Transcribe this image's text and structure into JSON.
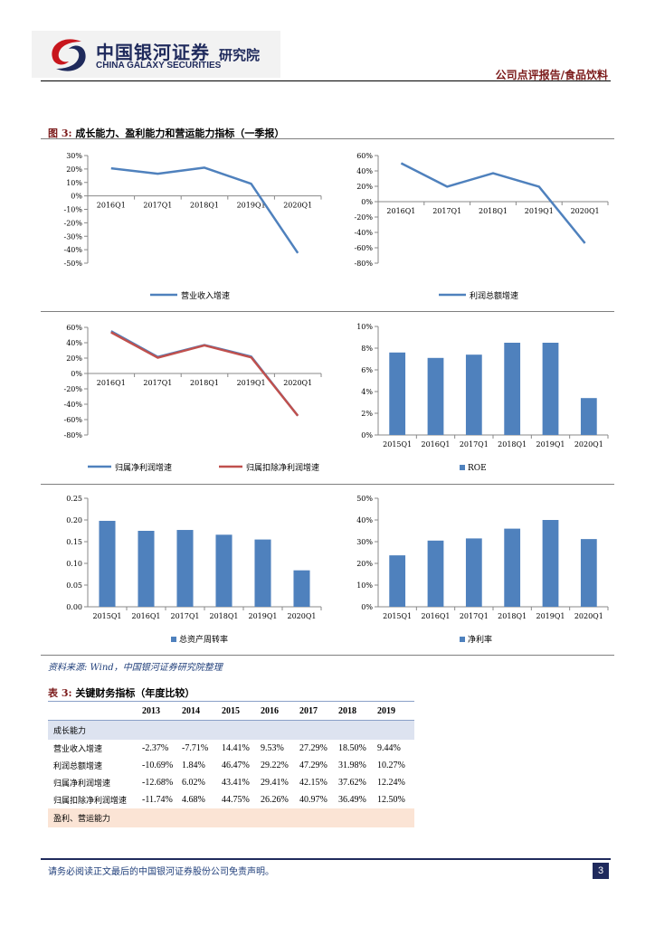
{
  "header": {
    "logo_cn": "中国银河证券",
    "logo_en": "CHINA GALAXY SECURITIES",
    "logo_inst": "研究院",
    "category": "公司点评报告/食品饮料"
  },
  "figure": {
    "label": "图 3:",
    "title": "成长能力、盈利能力和营运能力指标（一季报）",
    "source": "资料来源: Wind，中国银河证券研究院整理"
  },
  "colors": {
    "blue": "#4f81bd",
    "red": "#c0504d",
    "brand": "#1f2a5c"
  },
  "chart_data": [
    {
      "type": "line",
      "title": "",
      "categories": [
        "2016Q1",
        "2017Q1",
        "2018Q1",
        "2019Q1",
        "2020Q1"
      ],
      "series": [
        {
          "name": "营业收入增速",
          "values": [
            20.5,
            16.5,
            21.0,
            9.0,
            -42.5
          ]
        }
      ],
      "ylim": [
        -50,
        30
      ],
      "ticks": [
        "30%",
        "20%",
        "10%",
        "0%",
        "-10%",
        "-20%",
        "-30%",
        "-40%",
        "-50%"
      ]
    },
    {
      "type": "line",
      "title": "",
      "categories": [
        "2016Q1",
        "2017Q1",
        "2018Q1",
        "2019Q1",
        "2020Q1"
      ],
      "series": [
        {
          "name": "利润总额增速",
          "values": [
            50.0,
            19.5,
            37.0,
            19.5,
            -54.0
          ]
        }
      ],
      "ylim": [
        -80,
        60
      ],
      "ticks": [
        "60%",
        "40%",
        "20%",
        "0%",
        "-20%",
        "-40%",
        "-60%",
        "-80%"
      ]
    },
    {
      "type": "line",
      "title": "",
      "categories": [
        "2016Q1",
        "2017Q1",
        "2018Q1",
        "2019Q1",
        "2020Q1"
      ],
      "series": [
        {
          "name": "归属净利润增速",
          "values": [
            55.0,
            21.5,
            37.0,
            22.0,
            -55.0
          ]
        },
        {
          "name": "归属扣除净利润增速",
          "values": [
            53.5,
            20.5,
            36.5,
            21.0,
            -55.0
          ]
        }
      ],
      "ylim": [
        -80,
        60
      ],
      "ticks": [
        "60%",
        "40%",
        "20%",
        "0%",
        "-20%",
        "-40%",
        "-60%",
        "-80%"
      ]
    },
    {
      "type": "bar",
      "title": "",
      "categories": [
        "2015Q1",
        "2016Q1",
        "2017Q1",
        "2018Q1",
        "2019Q1",
        "2020Q1"
      ],
      "series": [
        {
          "name": "ROE",
          "values": [
            7.6,
            7.1,
            7.4,
            8.5,
            8.5,
            3.4
          ]
        }
      ],
      "ylim": [
        0,
        10
      ],
      "ticks": [
        "10%",
        "8%",
        "6%",
        "4%",
        "2%",
        "0%"
      ]
    },
    {
      "type": "bar",
      "title": "",
      "categories": [
        "2015Q1",
        "2016Q1",
        "2017Q1",
        "2018Q1",
        "2019Q1",
        "2020Q1"
      ],
      "series": [
        {
          "name": "总资产周转率",
          "values": [
            0.198,
            0.175,
            0.177,
            0.166,
            0.155,
            0.084
          ]
        }
      ],
      "ylim": [
        0,
        0.25
      ],
      "ticks": [
        "0.25",
        "0.20",
        "0.15",
        "0.10",
        "0.05",
        "0.00"
      ]
    },
    {
      "type": "bar",
      "title": "",
      "categories": [
        "2015Q1",
        "2016Q1",
        "2017Q1",
        "2018Q1",
        "2019Q1",
        "2020Q1"
      ],
      "series": [
        {
          "name": "净利率",
          "values": [
            23.7,
            30.5,
            31.5,
            36.0,
            40.0,
            31.2
          ]
        }
      ],
      "ylim": [
        0,
        50
      ],
      "ticks": [
        "50%",
        "40%",
        "30%",
        "20%",
        "10%",
        "0%"
      ]
    }
  ],
  "table": {
    "label": "表 3:",
    "title": "关键财务指标（年度比较）",
    "years": [
      "2013",
      "2014",
      "2015",
      "2016",
      "2017",
      "2018",
      "2019"
    ],
    "section1": "成长能力",
    "rows": [
      {
        "label": "营业收入增速",
        "values": [
          "-2.37%",
          "-7.71%",
          "14.41%",
          "9.53%",
          "27.29%",
          "18.50%",
          "9.44%"
        ]
      },
      {
        "label": "利润总额增速",
        "values": [
          "-10.69%",
          "1.84%",
          "46.47%",
          "29.22%",
          "47.29%",
          "31.98%",
          "10.27%"
        ]
      },
      {
        "label": "归属净利润增速",
        "values": [
          "-12.68%",
          "6.02%",
          "43.41%",
          "29.41%",
          "42.15%",
          "37.62%",
          "12.24%"
        ]
      },
      {
        "label": "归属扣除净利润增速",
        "values": [
          "-11.74%",
          "4.68%",
          "44.75%",
          "26.26%",
          "40.97%",
          "36.49%",
          "12.50%"
        ]
      }
    ],
    "section2": "盈利、营运能力"
  },
  "footer": {
    "disclaimer": "请务必阅读正文最后的中国银河证券股份公司免责声明。",
    "page": "3"
  }
}
